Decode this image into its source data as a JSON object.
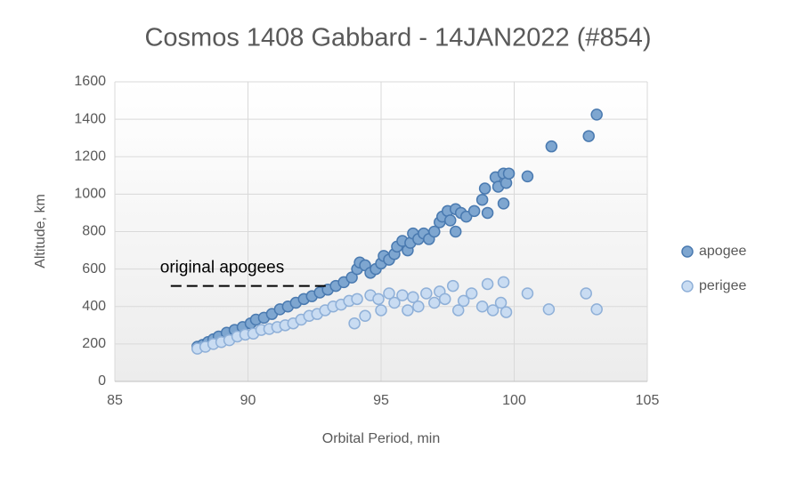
{
  "chart_data": {
    "type": "scatter",
    "title": "Cosmos 1408 Gabbard - 14JAN2022 (#854)",
    "x_label": "Orbital Period, min",
    "y_label": "Altitude, km",
    "xlim": [
      85,
      105
    ],
    "xticks": [
      85,
      90,
      95,
      100,
      105
    ],
    "ylim": [
      0,
      1600
    ],
    "yticks": [
      0,
      200,
      400,
      600,
      800,
      1000,
      1200,
      1400,
      1600
    ],
    "grid": true,
    "legend": "right",
    "annotation": {
      "text": "original apogees",
      "y": 510,
      "x": [
        87.1,
        93.1
      ]
    },
    "series": [
      {
        "name": "apogee",
        "color": "#7ea6d0",
        "edge": "#4a7ab0",
        "x": [
          88.1,
          88.3,
          88.5,
          88.7,
          88.9,
          89.2,
          89.5,
          89.8,
          90.1,
          90.3,
          90.6,
          90.9,
          91.2,
          91.5,
          91.8,
          92.1,
          92.4,
          92.7,
          93.0,
          93.3,
          93.6,
          93.9,
          94.1,
          94.2,
          94.4,
          94.6,
          94.8,
          95.0,
          95.1,
          95.3,
          95.5,
          95.6,
          95.8,
          96.0,
          96.1,
          96.2,
          96.4,
          96.6,
          96.8,
          97.0,
          97.2,
          97.3,
          97.5,
          97.6,
          97.8,
          97.8,
          98.0,
          98.2,
          98.5,
          98.8,
          98.9,
          99.0,
          99.3,
          99.4,
          99.6,
          99.7,
          99.6,
          99.8,
          100.5,
          101.4,
          102.8,
          103.1
        ],
        "values": [
          185,
          195,
          210,
          225,
          240,
          260,
          275,
          290,
          310,
          330,
          340,
          360,
          385,
          400,
          420,
          440,
          455,
          475,
          490,
          510,
          530,
          555,
          600,
          635,
          620,
          580,
          600,
          630,
          670,
          650,
          680,
          720,
          750,
          700,
          740,
          790,
          760,
          790,
          760,
          800,
          850,
          880,
          910,
          860,
          800,
          920,
          900,
          880,
          910,
          970,
          1030,
          900,
          1090,
          1040,
          1110,
          1060,
          950,
          1110,
          1095,
          1255,
          1310,
          1425
        ]
      },
      {
        "name": "perigee",
        "color": "#c9dcf2",
        "edge": "#8fb0d8",
        "x": [
          88.1,
          88.4,
          88.7,
          89.0,
          89.3,
          89.6,
          89.9,
          90.2,
          90.5,
          90.8,
          91.1,
          91.4,
          91.7,
          92.0,
          92.3,
          92.6,
          92.9,
          93.2,
          93.5,
          93.8,
          94.0,
          94.1,
          94.4,
          94.6,
          94.9,
          95.0,
          95.3,
          95.5,
          95.8,
          96.0,
          96.2,
          96.4,
          96.7,
          97.0,
          97.2,
          97.4,
          97.7,
          97.9,
          98.1,
          98.4,
          98.8,
          99.0,
          99.2,
          99.5,
          99.6,
          99.7,
          100.5,
          101.3,
          102.7,
          103.1
        ],
        "values": [
          175,
          185,
          200,
          210,
          220,
          240,
          250,
          255,
          275,
          280,
          290,
          300,
          310,
          330,
          350,
          360,
          380,
          400,
          410,
          430,
          310,
          440,
          350,
          460,
          440,
          380,
          470,
          420,
          460,
          380,
          450,
          400,
          470,
          420,
          480,
          440,
          510,
          380,
          430,
          470,
          400,
          520,
          380,
          420,
          530,
          370,
          470,
          385,
          470,
          385
        ]
      }
    ]
  }
}
